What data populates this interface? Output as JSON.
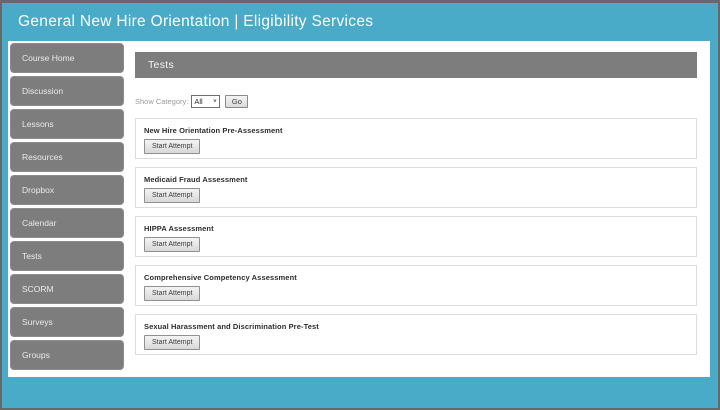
{
  "header": {
    "title": "General New Hire Orientation | Eligibility Services"
  },
  "sidebar": {
    "items": [
      {
        "label": "Course Home"
      },
      {
        "label": "Discussion"
      },
      {
        "label": "Lessons"
      },
      {
        "label": "Resources"
      },
      {
        "label": "Dropbox"
      },
      {
        "label": "Calendar"
      },
      {
        "label": "Tests"
      },
      {
        "label": "SCORM"
      },
      {
        "label": "Surveys"
      },
      {
        "label": "Groups"
      }
    ]
  },
  "main": {
    "section_title": "Tests",
    "filter": {
      "label": "Show Category:",
      "selected_option": "All",
      "go_label": "Go"
    },
    "tests": [
      {
        "title": "New Hire Orientation Pre-Assessment",
        "button_label": "Start Attempt"
      },
      {
        "title": "Medicaid Fraud Assessment",
        "button_label": "Start Attempt"
      },
      {
        "title": "HIPPA Assessment",
        "button_label": "Start Attempt"
      },
      {
        "title": "Comprehensive Competency Assessment",
        "button_label": "Start Attempt"
      },
      {
        "title": "Sexual Harassment and Discrimination Pre-Test",
        "button_label": "Start Attempt"
      }
    ]
  },
  "icons": {
    "chevron_down": "∨"
  },
  "colors": {
    "accent_teal": "#49abc7",
    "bar_gray": "#7d7d7d",
    "frame_border": "#66686a",
    "box_border": "#dcdcdc"
  }
}
